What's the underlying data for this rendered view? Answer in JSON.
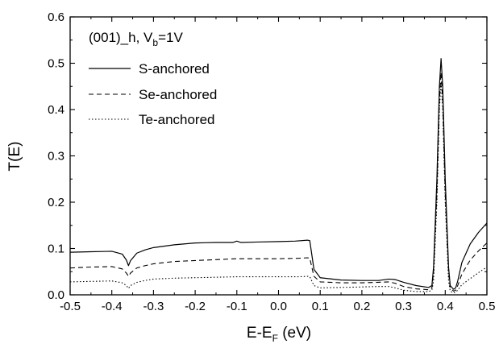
{
  "chart_data": {
    "type": "line",
    "xlabel_main": "E-E",
    "xlabel_sub": "F",
    "xlabel_unit": " (eV)",
    "ylabel": "T(E)",
    "xlim": [
      -0.5,
      0.5
    ],
    "ylim": [
      0.0,
      0.6
    ],
    "xticks": [
      "-0.5",
      "-0.4",
      "-0.3",
      "-0.2",
      "-0.1",
      "0.0",
      "0.1",
      "0.2",
      "0.3",
      "0.4",
      "0.5"
    ],
    "yticks": [
      "0.0",
      "0.1",
      "0.2",
      "0.3",
      "0.4",
      "0.5",
      "0.6"
    ],
    "grid": false,
    "legend_placement": "top-left",
    "legend_title_main": "(001)_h, V",
    "legend_title_sub": "b",
    "legend_title_tail": "=1V",
    "series": [
      {
        "name": "S-anchored",
        "style": "solid",
        "points": [
          [
            -0.5,
            0.092
          ],
          [
            -0.45,
            0.093
          ],
          [
            -0.4,
            0.094
          ],
          [
            -0.375,
            0.088
          ],
          [
            -0.365,
            0.075
          ],
          [
            -0.36,
            0.063
          ],
          [
            -0.355,
            0.074
          ],
          [
            -0.34,
            0.09
          ],
          [
            -0.32,
            0.097
          ],
          [
            -0.3,
            0.102
          ],
          [
            -0.25,
            0.108
          ],
          [
            -0.2,
            0.112
          ],
          [
            -0.15,
            0.113
          ],
          [
            -0.11,
            0.113
          ],
          [
            -0.1,
            0.116
          ],
          [
            -0.09,
            0.113
          ],
          [
            -0.05,
            0.114
          ],
          [
            0.0,
            0.115
          ],
          [
            0.04,
            0.116
          ],
          [
            0.07,
            0.118
          ],
          [
            0.075,
            0.117
          ],
          [
            0.085,
            0.055
          ],
          [
            0.1,
            0.037
          ],
          [
            0.15,
            0.032
          ],
          [
            0.2,
            0.031
          ],
          [
            0.24,
            0.031
          ],
          [
            0.265,
            0.034
          ],
          [
            0.28,
            0.033
          ],
          [
            0.3,
            0.027
          ],
          [
            0.33,
            0.02
          ],
          [
            0.36,
            0.016
          ],
          [
            0.368,
            0.02
          ],
          [
            0.372,
            0.06
          ],
          [
            0.38,
            0.25
          ],
          [
            0.386,
            0.45
          ],
          [
            0.39,
            0.51
          ],
          [
            0.394,
            0.45
          ],
          [
            0.4,
            0.25
          ],
          [
            0.408,
            0.06
          ],
          [
            0.412,
            0.02
          ],
          [
            0.42,
            0.012
          ],
          [
            0.425,
            0.015
          ],
          [
            0.43,
            0.03
          ],
          [
            0.44,
            0.07
          ],
          [
            0.46,
            0.11
          ],
          [
            0.48,
            0.135
          ],
          [
            0.5,
            0.155
          ]
        ]
      },
      {
        "name": "Se-anchored",
        "style": "dashed",
        "points": [
          [
            -0.5,
            0.058
          ],
          [
            -0.45,
            0.06
          ],
          [
            -0.4,
            0.061
          ],
          [
            -0.375,
            0.056
          ],
          [
            -0.365,
            0.047
          ],
          [
            -0.36,
            0.04
          ],
          [
            -0.355,
            0.047
          ],
          [
            -0.34,
            0.058
          ],
          [
            -0.32,
            0.063
          ],
          [
            -0.3,
            0.067
          ],
          [
            -0.25,
            0.072
          ],
          [
            -0.2,
            0.074
          ],
          [
            -0.15,
            0.076
          ],
          [
            -0.1,
            0.078
          ],
          [
            -0.05,
            0.078
          ],
          [
            0.0,
            0.078
          ],
          [
            0.05,
            0.079
          ],
          [
            0.07,
            0.08
          ],
          [
            0.075,
            0.079
          ],
          [
            0.085,
            0.04
          ],
          [
            0.1,
            0.028
          ],
          [
            0.15,
            0.026
          ],
          [
            0.2,
            0.026
          ],
          [
            0.24,
            0.027
          ],
          [
            0.265,
            0.028
          ],
          [
            0.28,
            0.025
          ],
          [
            0.3,
            0.018
          ],
          [
            0.33,
            0.013
          ],
          [
            0.36,
            0.011
          ],
          [
            0.368,
            0.015
          ],
          [
            0.372,
            0.05
          ],
          [
            0.38,
            0.22
          ],
          [
            0.386,
            0.42
          ],
          [
            0.39,
            0.48
          ],
          [
            0.394,
            0.42
          ],
          [
            0.4,
            0.22
          ],
          [
            0.408,
            0.05
          ],
          [
            0.412,
            0.015
          ],
          [
            0.42,
            0.008
          ],
          [
            0.425,
            0.01
          ],
          [
            0.43,
            0.02
          ],
          [
            0.44,
            0.045
          ],
          [
            0.46,
            0.075
          ],
          [
            0.48,
            0.095
          ],
          [
            0.5,
            0.112
          ]
        ]
      },
      {
        "name": "Te-anchored",
        "style": "dotted",
        "points": [
          [
            -0.5,
            0.028
          ],
          [
            -0.45,
            0.029
          ],
          [
            -0.4,
            0.03
          ],
          [
            -0.375,
            0.026
          ],
          [
            -0.365,
            0.02
          ],
          [
            -0.36,
            0.014
          ],
          [
            -0.355,
            0.02
          ],
          [
            -0.34,
            0.027
          ],
          [
            -0.32,
            0.031
          ],
          [
            -0.3,
            0.034
          ],
          [
            -0.25,
            0.036
          ],
          [
            -0.2,
            0.037
          ],
          [
            -0.15,
            0.038
          ],
          [
            -0.1,
            0.039
          ],
          [
            -0.05,
            0.039
          ],
          [
            0.0,
            0.039
          ],
          [
            0.05,
            0.039
          ],
          [
            0.07,
            0.04
          ],
          [
            0.075,
            0.039
          ],
          [
            0.085,
            0.02
          ],
          [
            0.1,
            0.015
          ],
          [
            0.15,
            0.016
          ],
          [
            0.2,
            0.017
          ],
          [
            0.24,
            0.018
          ],
          [
            0.265,
            0.018
          ],
          [
            0.28,
            0.015
          ],
          [
            0.3,
            0.01
          ],
          [
            0.33,
            0.007
          ],
          [
            0.36,
            0.007
          ],
          [
            0.368,
            0.01
          ],
          [
            0.372,
            0.03
          ],
          [
            0.38,
            0.2
          ],
          [
            0.386,
            0.4
          ],
          [
            0.39,
            0.46
          ],
          [
            0.394,
            0.4
          ],
          [
            0.4,
            0.2
          ],
          [
            0.408,
            0.03
          ],
          [
            0.412,
            0.008
          ],
          [
            0.42,
            0.004
          ],
          [
            0.425,
            0.006
          ],
          [
            0.43,
            0.01
          ],
          [
            0.44,
            0.022
          ],
          [
            0.46,
            0.035
          ],
          [
            0.48,
            0.048
          ],
          [
            0.5,
            0.06
          ]
        ]
      }
    ]
  }
}
